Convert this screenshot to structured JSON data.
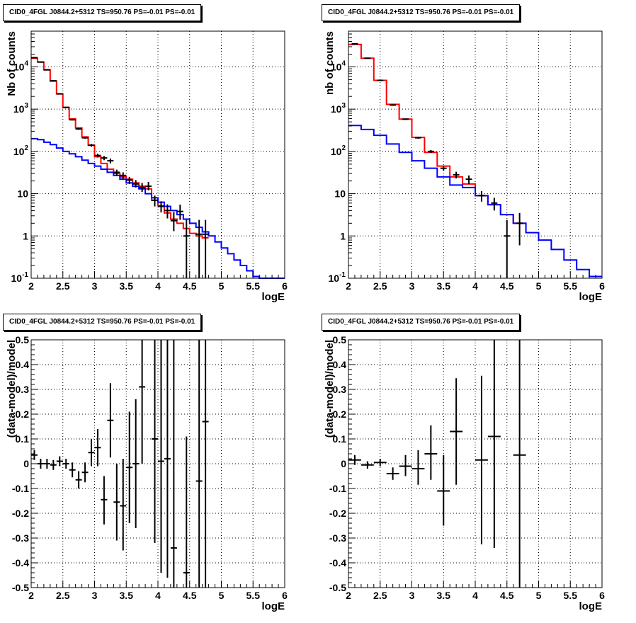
{
  "chart_data": [
    {
      "type": "line",
      "title": "CID0_4FGL J0844.2+5312 TS=950.76 PS=-0.01 PS=-0.01",
      "xlabel": "logE",
      "ylabel": "Nb of counts",
      "xlim": [
        2,
        6
      ],
      "ylim": [
        0.1,
        70000
      ],
      "yscale": "log",
      "grid": true,
      "xticks": [
        "2",
        "2.5",
        "3",
        "3.5",
        "4",
        "4.5",
        "5",
        "5.5",
        "6"
      ],
      "yticks": [
        {
          "value": 0.1,
          "label": "10",
          "exp": "-1"
        },
        {
          "value": 1,
          "label": "1",
          "exp": ""
        },
        {
          "value": 10,
          "label": "10",
          "exp": ""
        },
        {
          "value": 100,
          "label": "10",
          "exp": "2"
        },
        {
          "value": 1000,
          "label": "10",
          "exp": "3"
        },
        {
          "value": 10000,
          "label": "10",
          "exp": "4"
        }
      ],
      "series": [
        {
          "kind": "step",
          "color": "#ff0000",
          "edges": [
            2.0,
            2.1,
            2.2,
            2.3,
            2.4,
            2.5,
            2.6,
            2.7,
            2.8,
            2.9,
            3.0,
            3.1,
            3.2,
            3.3,
            3.4,
            3.5,
            3.6,
            3.7,
            3.8,
            3.9,
            4.0,
            4.1,
            4.2,
            4.3,
            4.4,
            4.5,
            4.6,
            4.7,
            4.8
          ],
          "values": [
            16000,
            13000,
            8500,
            4600,
            2300,
            1100,
            590,
            360,
            220,
            140,
            75,
            52,
            38,
            30,
            25,
            22,
            18,
            15,
            13,
            7,
            5.2,
            3.5,
            2.5,
            2.0,
            1.5,
            1.15,
            1.0,
            0.9
          ]
        },
        {
          "kind": "step",
          "color": "#0000ff",
          "edges": [
            2.0,
            2.1,
            2.2,
            2.3,
            2.4,
            2.5,
            2.6,
            2.7,
            2.8,
            2.9,
            3.0,
            3.1,
            3.2,
            3.3,
            3.4,
            3.5,
            3.6,
            3.7,
            3.8,
            3.9,
            4.0,
            4.1,
            4.2,
            4.3,
            4.4,
            4.5,
            4.6,
            4.7,
            4.8,
            4.9,
            5.0,
            5.1,
            5.2,
            5.3,
            5.4,
            5.5,
            5.6,
            5.7,
            5.8,
            5.9,
            6.0
          ],
          "values": [
            200,
            190,
            165,
            145,
            120,
            100,
            88,
            75,
            62,
            52,
            45,
            38,
            32,
            27,
            22,
            18,
            15,
            13,
            10,
            8,
            6.3,
            5.0,
            4.0,
            3.2,
            2.5,
            2.0,
            1.6,
            1.25,
            1.0,
            0.72,
            0.52,
            0.38,
            0.27,
            0.2,
            0.15,
            0.11,
            0.1,
            0.1,
            0.1,
            0.1
          ]
        },
        {
          "kind": "points",
          "color": "#000000",
          "x": [
            2.05,
            2.15,
            2.25,
            2.35,
            2.45,
            2.55,
            2.65,
            2.75,
            2.85,
            2.95,
            3.05,
            3.15,
            3.25,
            3.35,
            3.45,
            3.55,
            3.65,
            3.75,
            3.85,
            3.95,
            4.05,
            4.15,
            4.25,
            4.35,
            4.45,
            4.65,
            4.75
          ],
          "y": [
            16500,
            13000,
            8500,
            4700,
            2300,
            1100,
            560,
            340,
            210,
            140,
            80,
            70,
            60,
            32,
            27,
            21,
            17,
            14,
            15,
            7,
            5,
            4,
            2.3,
            3.8,
            1.0,
            1.1,
            1.1
          ],
          "ylo": [
            16300,
            12800,
            8350,
            4600,
            2250,
            1070,
            540,
            325,
            200,
            130,
            72,
            62,
            52,
            27,
            22,
            17,
            14,
            11,
            12,
            5,
            3.6,
            2.6,
            1.3,
            2.4,
            0.1,
            0.1,
            0.1
          ],
          "yhi": [
            16700,
            13200,
            8650,
            4800,
            2350,
            1130,
            580,
            355,
            220,
            150,
            88,
            78,
            68,
            37,
            32,
            25,
            21,
            18,
            19,
            9,
            6.6,
            5.6,
            3.7,
            5.5,
            2.4,
            2.4,
            2.4
          ]
        }
      ]
    },
    {
      "type": "line",
      "title": "CID0_4FGL J0844.2+5312 TS=950.76 PS=-0.01 PS=-0.01",
      "xlabel": "logE",
      "ylabel": "nb of counts",
      "xlim": [
        2,
        6
      ],
      "ylim": [
        0.1,
        70000
      ],
      "yscale": "log",
      "grid": true,
      "xticks": [
        "2",
        "2.5",
        "3",
        "3.5",
        "4",
        "4.5",
        "5",
        "5.5",
        "6"
      ],
      "yticks": [
        {
          "value": 0.1,
          "label": "10",
          "exp": "-1"
        },
        {
          "value": 1,
          "label": "1",
          "exp": ""
        },
        {
          "value": 10,
          "label": "10",
          "exp": ""
        },
        {
          "value": 100,
          "label": "10",
          "exp": "2"
        },
        {
          "value": 1000,
          "label": "10",
          "exp": "3"
        },
        {
          "value": 10000,
          "label": "10",
          "exp": "4"
        }
      ],
      "series": [
        {
          "kind": "step",
          "color": "#ff0000",
          "edges": [
            2.0,
            2.2,
            2.4,
            2.6,
            2.8,
            3.0,
            3.2,
            3.4,
            3.6,
            3.8,
            4.0,
            4.2,
            4.4,
            4.6,
            4.8
          ],
          "values": [
            34000,
            16000,
            4800,
            1300,
            580,
            215,
            95,
            45,
            25,
            17,
            9,
            5.5,
            3.2,
            2.0
          ],
          "ylo": [
            0,
            0,
            0,
            0,
            0,
            0,
            0,
            0,
            0,
            0,
            0,
            0,
            0,
            0
          ]
        },
        {
          "kind": "step",
          "color": "#0000ff",
          "edges": [
            2.0,
            2.2,
            2.4,
            2.6,
            2.8,
            3.0,
            3.2,
            3.4,
            3.6,
            3.8,
            4.0,
            4.2,
            4.4,
            4.6,
            4.8,
            5.0,
            5.2,
            5.4,
            5.6,
            5.8,
            6.0
          ],
          "values": [
            410,
            330,
            240,
            150,
            95,
            60,
            40,
            25,
            16,
            14,
            9,
            5.5,
            3.2,
            2.0,
            1.2,
            0.8,
            0.48,
            0.27,
            0.16,
            0.11
          ]
        },
        {
          "kind": "points",
          "color": "#000000",
          "x": [
            2.1,
            2.3,
            2.5,
            2.7,
            2.9,
            3.1,
            3.3,
            3.5,
            3.7,
            3.9,
            4.1,
            4.3,
            4.5,
            4.7
          ],
          "y": [
            35000,
            16000,
            4800,
            1250,
            580,
            210,
            100,
            40,
            28,
            22,
            9,
            6,
            1.0,
            2.0
          ],
          "ylo": [
            34500,
            15800,
            4700,
            1200,
            560,
            200,
            92,
            35,
            23,
            17,
            6.5,
            4,
            0.1,
            0.6
          ],
          "yhi": [
            35500,
            16200,
            4900,
            1300,
            600,
            220,
            108,
            45,
            33,
            27,
            11.5,
            8,
            2.4,
            3.5
          ]
        }
      ]
    },
    {
      "type": "scatter",
      "title": "CID0_4FGL J0844.2+5312 TS=950.76 PS=-0.01 PS=-0.01",
      "xlabel": "logE",
      "ylabel": "(data-model)/model",
      "xlim": [
        2,
        6
      ],
      "ylim": [
        -0.5,
        0.5
      ],
      "grid": true,
      "xticks": [
        "2",
        "2.5",
        "3",
        "3.5",
        "4",
        "4.5",
        "5",
        "5.5",
        "6"
      ],
      "yticks": [
        "-0.5",
        "-0.4",
        "-0.3",
        "-0.2",
        "-0.1",
        "0",
        "0.1",
        "0.2",
        "0.3",
        "0.4",
        "0.5"
      ],
      "series": [
        {
          "kind": "points",
          "color": "#000000",
          "xerr": 0.05,
          "x": [
            2.05,
            2.15,
            2.25,
            2.35,
            2.45,
            2.55,
            2.65,
            2.75,
            2.85,
            2.95,
            3.05,
            3.15,
            3.25,
            3.35,
            3.45,
            3.55,
            3.65,
            3.75,
            3.95,
            4.05,
            4.15,
            4.25,
            4.45,
            4.65,
            4.75
          ],
          "y": [
            0.035,
            0.0,
            0.0,
            -0.005,
            0.01,
            0.0,
            -0.025,
            -0.065,
            -0.035,
            0.045,
            0.065,
            -0.145,
            0.175,
            -0.155,
            -0.17,
            -0.015,
            0.0,
            0.31,
            0.1,
            0.01,
            0.02,
            -0.34,
            -0.44,
            -0.07,
            0.17
          ],
          "ylo": [
            0.015,
            -0.02,
            -0.02,
            -0.025,
            -0.01,
            -0.02,
            -0.055,
            -0.1,
            -0.075,
            -0.01,
            -0.01,
            -0.245,
            0.025,
            -0.31,
            -0.35,
            -0.24,
            -0.26,
            0.0,
            -0.32,
            -0.44,
            -0.46,
            -0.5,
            -0.5,
            -0.5,
            -0.5
          ],
          "yhi": [
            0.055,
            0.02,
            0.02,
            0.015,
            0.03,
            0.02,
            0.005,
            -0.03,
            0.005,
            0.1,
            0.14,
            -0.05,
            0.325,
            0.0,
            0.02,
            0.21,
            0.26,
            0.5,
            0.5,
            0.5,
            0.5,
            0.5,
            0.11,
            0.5,
            0.5
          ]
        }
      ]
    },
    {
      "type": "scatter",
      "title": "CID0_4FGL J0844.2+5312 TS=950.76 PS=-0.01 PS=-0.01",
      "xlabel": "logE",
      "ylabel": "(data-model)/model",
      "xlim": [
        2,
        6
      ],
      "ylim": [
        -0.5,
        0.5
      ],
      "grid": true,
      "xticks": [
        "2",
        "2.5",
        "3",
        "3.5",
        "4",
        "4.5",
        "5",
        "5.5",
        "6"
      ],
      "yticks": [
        "-0.5",
        "-0.4",
        "-0.3",
        "-0.2",
        "-0.1",
        "0",
        "0.1",
        "0.2",
        "0.3",
        "0.4",
        "0.5"
      ],
      "series": [
        {
          "kind": "points",
          "color": "#000000",
          "xerr": 0.1,
          "x": [
            2.1,
            2.3,
            2.5,
            2.7,
            2.9,
            3.1,
            3.3,
            3.5,
            3.7,
            4.1,
            4.3,
            4.7
          ],
          "y": [
            0.015,
            -0.005,
            0.005,
            -0.04,
            -0.01,
            -0.02,
            0.04,
            -0.11,
            0.13,
            0.015,
            0.11,
            0.035
          ],
          "ylo": [
            -0.005,
            -0.02,
            -0.01,
            -0.065,
            -0.05,
            -0.085,
            -0.065,
            -0.25,
            -0.085,
            -0.325,
            -0.34,
            -0.5
          ],
          "yhi": [
            0.035,
            0.01,
            0.02,
            -0.015,
            0.035,
            0.055,
            0.155,
            0.035,
            0.345,
            0.355,
            0.5,
            0.5
          ]
        }
      ]
    }
  ]
}
